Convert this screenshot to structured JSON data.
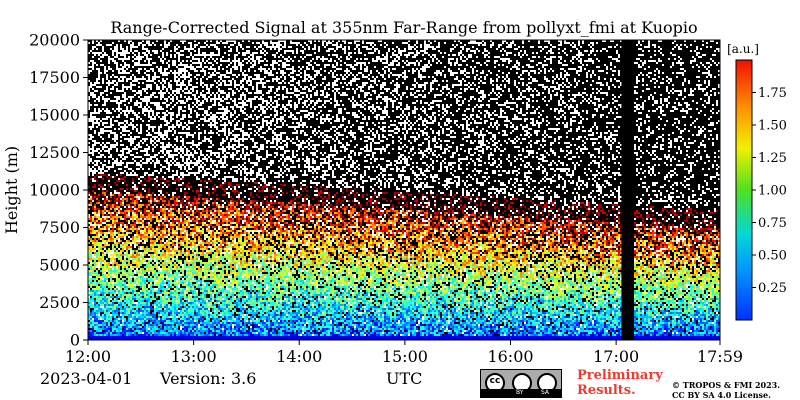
{
  "chart_data": {
    "type": "heatmap",
    "title": "Range-Corrected Signal at 355nm Far-Range from pollyxt_fmi at Kuopio",
    "ylabel": "Height (m)",
    "xlabel": "UTC",
    "ylim": [
      0,
      20000
    ],
    "x_range": [
      "12:00",
      "17:59"
    ],
    "y_ticks": [
      0,
      2500,
      5000,
      7500,
      10000,
      12500,
      15000,
      17500,
      20000
    ],
    "x_ticks": [
      "12:00",
      "13:00",
      "14:00",
      "15:00",
      "16:00",
      "17:00",
      "17:59"
    ],
    "colorbar": {
      "label": "[a.u.]",
      "range": [
        0,
        2.0
      ],
      "ticks": [
        0.25,
        0.5,
        0.75,
        1.0,
        1.25,
        1.5,
        1.75
      ],
      "colormap": "jet"
    },
    "no_data_interval": [
      "17:03",
      "17:10"
    ],
    "noise_color": "#ffffff",
    "cloud_top_height_m": [
      10000,
      7500
    ]
  },
  "footer": {
    "date": "2023-04-01",
    "version": "Version: 3.6",
    "axis_unit": "UTC",
    "license_logo": {
      "cc": "cc",
      "by": "BY",
      "sa": "SA"
    },
    "preliminary_line1": "Preliminary",
    "preliminary_line2": "Results.",
    "copyright_line1": "© TROPOS & FMI 2023.",
    "copyright_line2": "CC BY SA 4.0 License."
  }
}
